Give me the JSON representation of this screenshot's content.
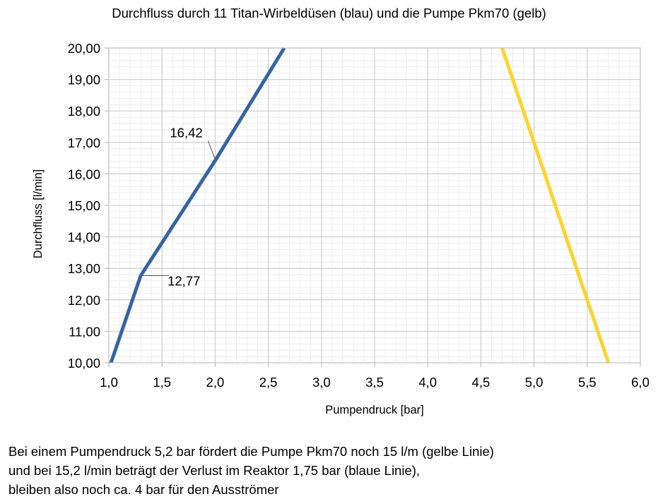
{
  "chart_data": {
    "type": "line",
    "title": "Durchfluss durch 11 Titan-Wirbeldüsen (blau) und die Pumpe Pkm70 (gelb)",
    "xlabel": "Pumpendruck [bar]",
    "ylabel": "Durchfluss [l/min]",
    "xlim": [
      1.0,
      6.0
    ],
    "ylim": [
      10.0,
      20.0
    ],
    "x_ticks": [
      "1,0",
      "1,5",
      "2,0",
      "2,5",
      "3,0",
      "3,5",
      "4,0",
      "4,5",
      "5,0",
      "5,5",
      "6,0"
    ],
    "y_ticks": [
      "10,00",
      "11,00",
      "12,00",
      "13,00",
      "14,00",
      "15,00",
      "16,00",
      "17,00",
      "18,00",
      "19,00",
      "20,00"
    ],
    "grid": true,
    "series": [
      {
        "color": "#3465a4",
        "x": [
          1.02,
          1.3,
          2.0,
          2.65
        ],
        "y": [
          10.0,
          12.77,
          16.42,
          20.0
        ]
      },
      {
        "color": "#f9d62e",
        "x": [
          4.7,
          5.0,
          5.7
        ],
        "y": [
          20.0,
          17.0,
          10.0
        ]
      }
    ],
    "annotations": [
      {
        "text": "16,42",
        "x": 2.0,
        "y": 16.42
      },
      {
        "text": "12,77",
        "x": 1.3,
        "y": 12.77
      }
    ]
  },
  "caption": [
    "Bei einem Pumpendruck 5,2 bar fördert die Pumpe Pkm70 noch 15 l/m (gelbe Linie)",
    "und bei 15,2 l/min beträgt der Verlust im Reaktor 1,75 bar (blaue Linie),",
    "bleiben also noch ca. 4 bar für den Ausströmer"
  ]
}
